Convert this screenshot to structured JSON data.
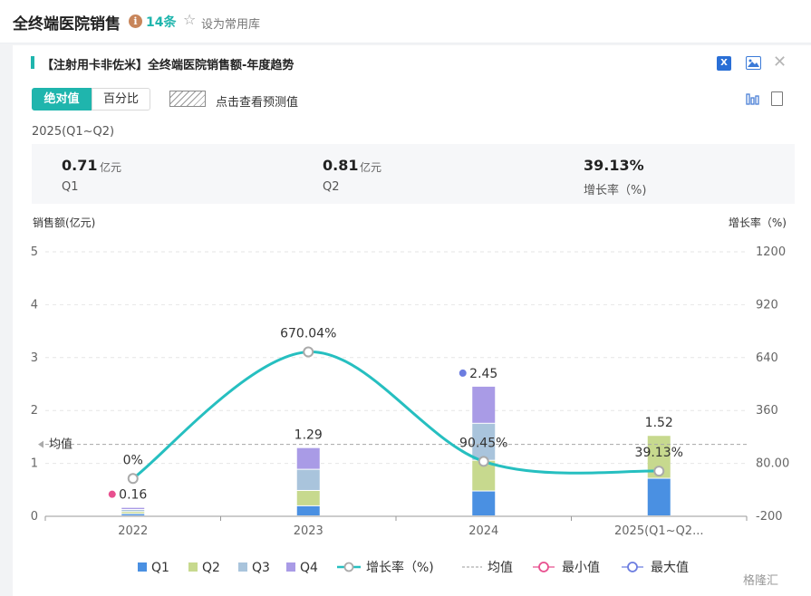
{
  "header": {
    "title": "全终端医院销售",
    "count": "14条",
    "favorite_label": "设为常用库"
  },
  "panel": {
    "title": "【注射用卡非佐米】全终端医院销售额-年度趋势",
    "toggle_abs": "绝对值",
    "toggle_pct": "百分比",
    "forecast_label": "点击查看预测值",
    "period": "2025(Q1~Q2)",
    "stats": [
      {
        "value": "0.71",
        "unit": "亿元",
        "label": "Q1"
      },
      {
        "value": "0.81",
        "unit": "亿元",
        "label": "Q2"
      },
      {
        "value": "39.13%",
        "unit": "",
        "label": "增长率（%)"
      }
    ]
  },
  "icons": {
    "info": "info-icon",
    "star": "star-icon",
    "excel": "excel-icon",
    "image": "image-icon",
    "close": "close-icon",
    "bar_chart": "bar-chart-icon",
    "document": "document-icon"
  },
  "footer": {
    "logo": "格隆汇"
  },
  "chart_data": {
    "type": "bar",
    "stacked": true,
    "ylabel": "销售额(亿元)",
    "y2label": "增长率（%)",
    "ylim": [
      0,
      5
    ],
    "yticks": [
      0,
      1,
      2,
      3,
      4,
      5
    ],
    "y2lim": [
      -200,
      1200
    ],
    "y2ticks": [
      "-200",
      "80.00",
      "360",
      "640",
      "920",
      "1200"
    ],
    "grid": true,
    "legend_position": "bottom",
    "categories": [
      "2022",
      "2023",
      "2024",
      "2025(Q1~Q2..."
    ],
    "series": [
      {
        "name": "Q1",
        "color": "#4a90e2",
        "values": [
          0.04,
          0.19,
          0.47,
          0.71
        ]
      },
      {
        "name": "Q2",
        "color": "#c7d98e",
        "values": [
          0.04,
          0.29,
          0.58,
          0.81
        ]
      },
      {
        "name": "Q3",
        "color": "#a9c4dc",
        "values": [
          0.04,
          0.4,
          0.7,
          0
        ]
      },
      {
        "name": "Q4",
        "color": "#a99be6",
        "values": [
          0.04,
          0.41,
          0.7,
          0
        ]
      }
    ],
    "totals": [
      "0.16",
      "1.29",
      "2.45",
      "1.52"
    ],
    "growth": {
      "name": "增长率（%)",
      "color": "#26bfc0",
      "values": [
        0,
        670.04,
        90.45,
        39.13
      ],
      "labels": [
        "0%",
        "670.04%",
        "90.45%",
        "39.13%"
      ]
    },
    "mean": {
      "name": "均值",
      "label": "均值",
      "value": 1.36
    },
    "min_marker": {
      "name": "最小值",
      "color": "#e8508f",
      "category": "2022"
    },
    "max_marker": {
      "name": "最大值",
      "color": "#6c7de0",
      "category": "2024"
    }
  }
}
